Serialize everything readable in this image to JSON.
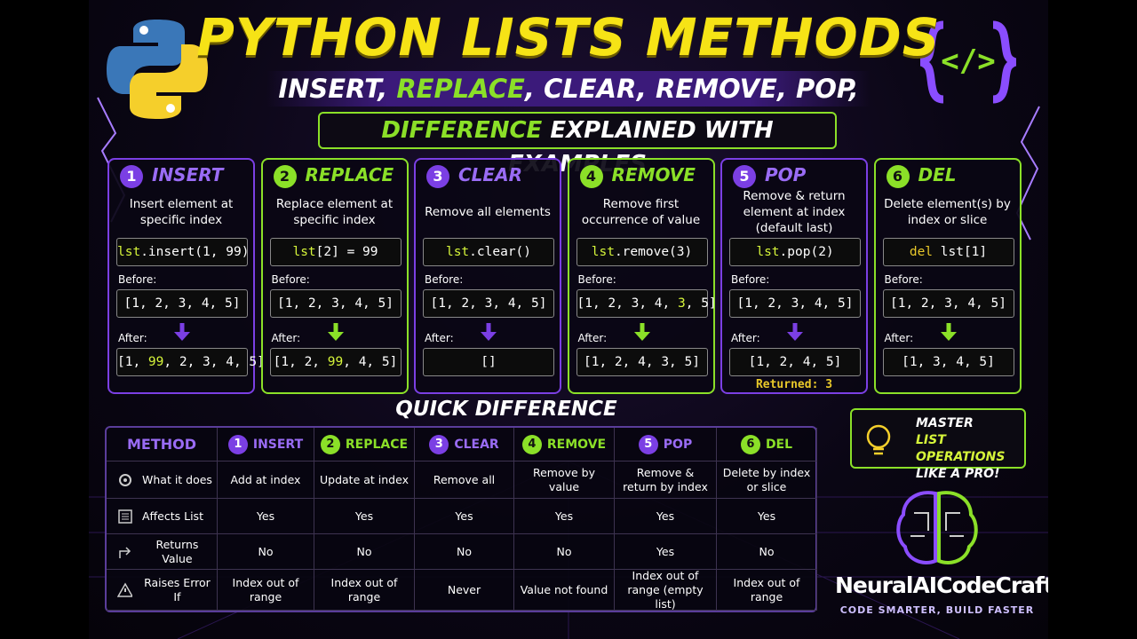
{
  "header": {
    "title": "PYTHON LISTS METHODS",
    "subtitle": [
      "INSERT, ",
      "REPLACE",
      ", CLEAR, REMOVE, POP, DEL"
    ],
    "banner": [
      "DIFFERENCE",
      " EXPLAINED WITH EXAMPLES"
    ],
    "icon": "</>"
  },
  "cards": [
    {
      "number": "1",
      "name": "INSERT",
      "description": "Insert element at specific index",
      "code": [
        "lst",
        ".insert(1, 99)"
      ],
      "before_label": "Before:",
      "before": [
        "[1, 2, 3, 4, 5]"
      ],
      "after_label": "After:",
      "after": [
        "[1, ",
        "99",
        ", 2, 3, 4, 5]"
      ]
    },
    {
      "number": "2",
      "name": "REPLACE",
      "description": "Replace element at specific index",
      "code": [
        "lst",
        "[2] = 99"
      ],
      "before_label": "Before:",
      "before": [
        "[1, 2, 3, 4, 5]"
      ],
      "after_label": "After:",
      "after": [
        "[1, 2, ",
        "99",
        ", 4, 5]"
      ]
    },
    {
      "number": "3",
      "name": "CLEAR",
      "description": "Remove all elements",
      "code": [
        "lst",
        ".clear()"
      ],
      "before_label": "Before:",
      "before": [
        "[1, 2, 3, 4, 5]"
      ],
      "after_label": "After:",
      "after": [
        "[]"
      ]
    },
    {
      "number": "4",
      "name": "REMOVE",
      "description": "Remove first occurrence of value",
      "code": [
        "lst",
        ".remove(3)"
      ],
      "before_label": "Before:",
      "before": [
        "[1, 2, 3, 4, ",
        "3",
        ", 5]"
      ],
      "after_label": "After:",
      "after": [
        "[1, 2, 4, 3, 5]"
      ]
    },
    {
      "number": "5",
      "name": "POP",
      "description": "Remove & return element at index (default last)",
      "code": [
        "lst",
        ".pop(2)"
      ],
      "before_label": "Before:",
      "before": [
        "[1, 2, 3, 4, 5]"
      ],
      "after_label": "After:",
      "after": [
        "[1, 2, 4, 5]"
      ],
      "returned": "Returned: 3"
    },
    {
      "number": "6",
      "name": "DEL",
      "description": "Delete element(s) by index or slice",
      "code": [
        "del ",
        "lst[1]"
      ],
      "before_label": "Before:",
      "before": [
        "[1, 2, 3, 4, 5]"
      ],
      "after_label": "After:",
      "after": [
        "[1, 3, 4, 5]"
      ]
    }
  ],
  "table": {
    "title": "QUICK DIFFERENCE",
    "corner": "METHOD",
    "headers": [
      {
        "number": "1",
        "name": "INSERT"
      },
      {
        "number": "2",
        "name": "REPLACE"
      },
      {
        "number": "3",
        "name": "CLEAR"
      },
      {
        "number": "4",
        "name": "REMOVE"
      },
      {
        "number": "5",
        "name": "POP"
      },
      {
        "number": "6",
        "name": "DEL"
      }
    ],
    "rows": [
      {
        "label": "What it does",
        "cells": [
          "Add at index",
          "Update at index",
          "Remove all",
          "Remove by value",
          "Remove & return by index",
          "Delete by index or slice"
        ]
      },
      {
        "label": "Affects List",
        "cells": [
          "Yes",
          "Yes",
          "Yes",
          "Yes",
          "Yes",
          "Yes"
        ]
      },
      {
        "label": "Returns Value",
        "cells": [
          "No",
          "No",
          "No",
          "No",
          "Yes",
          "No"
        ]
      },
      {
        "label": "Raises Error If",
        "cells": [
          "Index out of range",
          "Index out of range",
          "Never",
          "Value not found",
          "Index out of range (empty list)",
          "Index out of range"
        ]
      }
    ]
  },
  "promo": [
    "MASTER",
    "LIST OPERATIONS",
    "LIKE A PRO!"
  ],
  "brand": {
    "name": "NeuralAICodeCraft",
    "tagline": "CODE SMARTER, BUILD FASTER"
  }
}
